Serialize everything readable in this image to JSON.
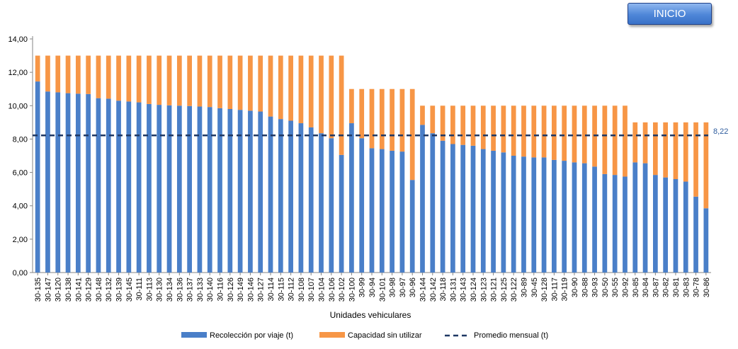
{
  "button": {
    "label": "INICIO"
  },
  "colors": {
    "collected": "#4a7fc8",
    "unused": "#f79646",
    "average": "#1f3864"
  },
  "chart_data": {
    "type": "bar",
    "stacked": true,
    "xlabel": "Unidades vehiculares",
    "ylabel": "",
    "ylim": [
      0,
      14
    ],
    "yticks": [
      "0,00",
      "2,00",
      "4,00",
      "6,00",
      "8,00",
      "10,00",
      "12,00",
      "14,00"
    ],
    "categories": [
      "30-135",
      "30-147",
      "30-120",
      "30-138",
      "30-141",
      "30-129",
      "30-148",
      "30-132",
      "30-139",
      "30-145",
      "30-111",
      "30-113",
      "30-130",
      "30-134",
      "30-136",
      "30-137",
      "30-133",
      "30-140",
      "30-116",
      "30-126",
      "30-149",
      "30-146",
      "30-127",
      "30-114",
      "30-115",
      "30-112",
      "30-108",
      "30-107",
      "30-104",
      "30-106",
      "30-102",
      "30-100",
      "30-99",
      "30-94",
      "30-101",
      "30-98",
      "30-97",
      "30-96",
      "30-144",
      "30-142",
      "30-118",
      "30-131",
      "30-143",
      "30-124",
      "30-123",
      "30-121",
      "30-125",
      "30-122",
      "30-89",
      "30-45",
      "30-128",
      "30-117",
      "30-119",
      "30-90",
      "30-88",
      "30-93",
      "30-50",
      "30-55",
      "30-92",
      "30-85",
      "30-84",
      "30-87",
      "30-82",
      "30-81",
      "30-83",
      "30-78",
      "30-86"
    ],
    "series": [
      {
        "name": "Recolección por viaje (t)",
        "values": [
          11.45,
          10.85,
          10.8,
          10.75,
          10.72,
          10.7,
          10.45,
          10.42,
          10.3,
          10.25,
          10.2,
          10.1,
          10.05,
          10.02,
          10.0,
          9.98,
          9.95,
          9.92,
          9.85,
          9.8,
          9.75,
          9.7,
          9.65,
          9.35,
          9.2,
          9.1,
          8.95,
          8.7,
          8.35,
          8.05,
          7.05,
          8.95,
          8.05,
          7.45,
          7.4,
          7.3,
          7.25,
          5.55,
          8.85,
          8.35,
          7.9,
          7.7,
          7.65,
          7.6,
          7.4,
          7.3,
          7.2,
          7.0,
          6.95,
          6.9,
          6.9,
          6.75,
          6.7,
          6.6,
          6.55,
          6.35,
          5.9,
          5.85,
          5.75,
          6.6,
          6.55,
          5.85,
          5.7,
          5.6,
          5.45,
          4.55,
          3.85
        ]
      },
      {
        "name": "Capacidad sin utilizar",
        "values": [
          1.55,
          2.15,
          2.2,
          2.25,
          2.28,
          2.3,
          2.55,
          2.58,
          2.7,
          2.75,
          2.8,
          2.9,
          2.95,
          2.98,
          3.0,
          3.02,
          3.05,
          3.08,
          3.15,
          3.2,
          3.25,
          3.3,
          3.35,
          3.65,
          3.8,
          3.9,
          4.05,
          4.3,
          4.65,
          4.95,
          5.95,
          2.05,
          2.95,
          3.55,
          3.6,
          3.7,
          3.75,
          5.45,
          1.15,
          1.65,
          2.1,
          2.3,
          2.35,
          2.4,
          2.6,
          2.7,
          2.8,
          3.0,
          3.05,
          3.1,
          3.1,
          3.25,
          3.3,
          3.4,
          3.45,
          3.65,
          4.1,
          4.15,
          4.25,
          2.4,
          2.45,
          3.15,
          3.3,
          3.4,
          3.55,
          4.45,
          5.15
        ]
      }
    ],
    "average": {
      "name": "Promedio mensual (t)",
      "value": 8.22,
      "label": "8,22"
    },
    "legend_position": "bottom"
  }
}
